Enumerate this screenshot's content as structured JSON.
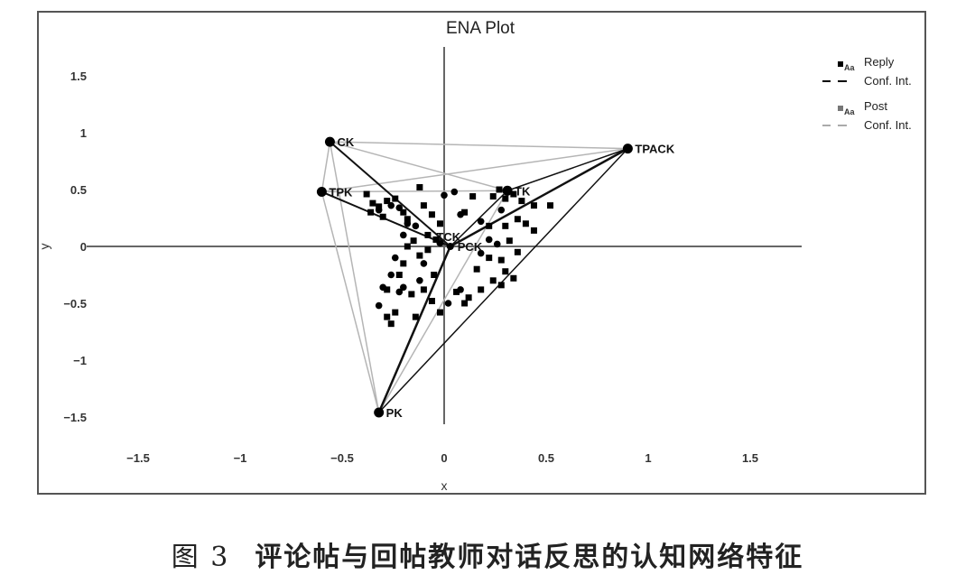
{
  "chart_data": {
    "type": "scatter",
    "title": "ENA Plot",
    "xlabel": "x",
    "ylabel": "y",
    "xlim": [
      -1.75,
      1.75
    ],
    "ylim": [
      -1.7,
      1.7
    ],
    "x_ticks": [
      "-1.5",
      "-1",
      "-0.5",
      "0",
      "0.5",
      "1",
      "1.5"
    ],
    "y_ticks": [
      "1.5",
      "1",
      "0.5",
      "0",
      "-0.5",
      "-1",
      "-1.5"
    ],
    "grid": false,
    "legend_position": "top-right",
    "legend": [
      {
        "marker": "square",
        "glyph": "Aa",
        "label": "Reply",
        "color": "#000000"
      },
      {
        "line": "dashed",
        "label": "Conf. Int.",
        "color": "#000000"
      },
      {
        "marker": "square",
        "glyph": "Aa",
        "label": "Post",
        "color": "#777777"
      },
      {
        "line": "dashed",
        "label": "Conf. Int.",
        "color": "#aaaaaa"
      }
    ],
    "nodes": [
      {
        "name": "CK",
        "x": -0.56,
        "y": 0.92
      },
      {
        "name": "TPK",
        "x": -0.6,
        "y": 0.48
      },
      {
        "name": "TPACK",
        "x": 0.9,
        "y": 0.86
      },
      {
        "name": "TK",
        "x": 0.31,
        "y": 0.49
      },
      {
        "name": "PK",
        "x": -0.32,
        "y": -1.46
      },
      {
        "name": "TCK",
        "x": -0.02,
        "y": 0.03
      },
      {
        "name": "PCK",
        "x": 0.03,
        "y": 0.0
      }
    ],
    "edges_reply": [
      {
        "from": "CK",
        "to": "PCK",
        "weight": 2
      },
      {
        "from": "TPK",
        "to": "PCK",
        "weight": 2
      },
      {
        "from": "TK",
        "to": "PCK",
        "weight": 1.5
      },
      {
        "from": "TPACK",
        "to": "PCK",
        "weight": 2.5
      },
      {
        "from": "PK",
        "to": "PCK",
        "weight": 2.5
      },
      {
        "from": "PK",
        "to": "TPACK",
        "weight": 1.5
      },
      {
        "from": "TK",
        "to": "TPACK",
        "weight": 1.5
      }
    ],
    "edges_post": [
      {
        "from": "CK",
        "to": "TPACK"
      },
      {
        "from": "TPK",
        "to": "TPACK"
      },
      {
        "from": "CK",
        "to": "TPK"
      },
      {
        "from": "CK",
        "to": "PK"
      },
      {
        "from": "TPK",
        "to": "PK"
      },
      {
        "from": "CK",
        "to": "TK"
      },
      {
        "from": "TPK",
        "to": "TK"
      },
      {
        "from": "PK",
        "to": "TK"
      },
      {
        "from": "TK",
        "to": "PCK"
      }
    ],
    "series": [
      {
        "name": "Reply",
        "marker": "square",
        "points": [
          [
            -0.38,
            0.46
          ],
          [
            -0.35,
            0.38
          ],
          [
            -0.32,
            0.35
          ],
          [
            -0.28,
            0.4
          ],
          [
            -0.24,
            0.42
          ],
          [
            -0.36,
            0.3
          ],
          [
            -0.3,
            0.26
          ],
          [
            -0.2,
            0.3
          ],
          [
            -0.18,
            0.24
          ],
          [
            -0.1,
            0.36
          ],
          [
            -0.06,
            0.28
          ],
          [
            -0.08,
            0.1
          ],
          [
            -0.02,
            0.2
          ],
          [
            -0.12,
            0.52
          ],
          [
            -0.04,
            0.06
          ],
          [
            -0.15,
            0.05
          ],
          [
            -0.18,
            0.0
          ],
          [
            -0.2,
            -0.15
          ],
          [
            -0.12,
            -0.08
          ],
          [
            -0.08,
            -0.03
          ],
          [
            -0.22,
            -0.25
          ],
          [
            -0.28,
            -0.38
          ],
          [
            -0.16,
            -0.42
          ],
          [
            -0.24,
            -0.58
          ],
          [
            -0.28,
            -0.62
          ],
          [
            -0.26,
            -0.68
          ],
          [
            -0.14,
            -0.62
          ],
          [
            -0.1,
            -0.38
          ],
          [
            -0.05,
            -0.25
          ],
          [
            -0.06,
            -0.48
          ],
          [
            -0.02,
            -0.58
          ],
          [
            0.14,
            0.44
          ],
          [
            0.24,
            0.44
          ],
          [
            0.27,
            0.5
          ],
          [
            0.3,
            0.42
          ],
          [
            0.34,
            0.46
          ],
          [
            0.38,
            0.4
          ],
          [
            0.44,
            0.36
          ],
          [
            0.52,
            0.36
          ],
          [
            0.1,
            0.3
          ],
          [
            0.22,
            0.18
          ],
          [
            0.3,
            0.18
          ],
          [
            0.36,
            0.24
          ],
          [
            0.4,
            0.2
          ],
          [
            0.44,
            0.14
          ],
          [
            0.32,
            0.05
          ],
          [
            0.36,
            -0.05
          ],
          [
            0.28,
            -0.12
          ],
          [
            0.22,
            -0.1
          ],
          [
            0.16,
            -0.2
          ],
          [
            0.3,
            -0.22
          ],
          [
            0.34,
            -0.28
          ],
          [
            0.18,
            -0.38
          ],
          [
            0.12,
            -0.45
          ],
          [
            0.06,
            -0.4
          ],
          [
            0.1,
            -0.5
          ],
          [
            0.24,
            -0.3
          ],
          [
            0.28,
            -0.34
          ]
        ]
      },
      {
        "name": "Post",
        "marker": "circle",
        "points": [
          [
            -0.32,
            0.32
          ],
          [
            -0.26,
            0.36
          ],
          [
            -0.22,
            0.34
          ],
          [
            -0.18,
            0.2
          ],
          [
            -0.14,
            0.18
          ],
          [
            -0.2,
            0.1
          ],
          [
            0.0,
            0.45
          ],
          [
            0.05,
            0.48
          ],
          [
            0.08,
            0.28
          ],
          [
            0.18,
            0.22
          ],
          [
            0.22,
            0.06
          ],
          [
            0.26,
            0.02
          ],
          [
            -0.24,
            -0.1
          ],
          [
            -0.26,
            -0.25
          ],
          [
            -0.3,
            -0.36
          ],
          [
            -0.22,
            -0.4
          ],
          [
            -0.2,
            -0.36
          ],
          [
            -0.32,
            -0.52
          ],
          [
            -0.12,
            -0.3
          ],
          [
            -0.1,
            -0.15
          ],
          [
            0.02,
            -0.5
          ],
          [
            0.08,
            -0.38
          ],
          [
            0.18,
            -0.06
          ],
          [
            0.28,
            0.32
          ]
        ]
      }
    ]
  },
  "caption": {
    "figure_number": "图 3",
    "text": "评论帖与回帖教师对话反思的认知网络特征"
  }
}
